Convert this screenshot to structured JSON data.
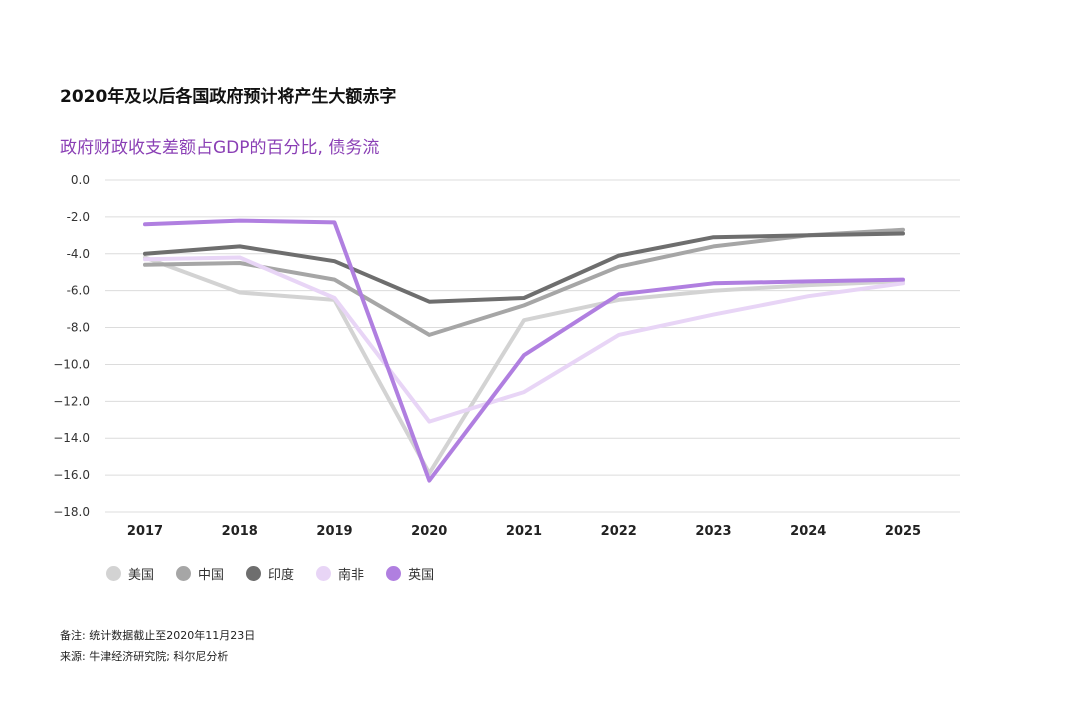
{
  "title": "2020年及以后各国政府预计将产生大额赤字",
  "subtitle": "政府财政收支差额占GDP的百分比, 债务流",
  "notes": {
    "remark": "备注: 统计数据截止至2020年11月23日",
    "source": "来源: 牛津经济研究院; 科尔尼分析"
  },
  "chart_data": {
    "type": "line",
    "title": "2020年及以后各国政府预计将产生大额赤字",
    "subtitle": "政府财政收支差额占GDP的百分比, 债务流",
    "x": [
      "2017",
      "2018",
      "2019",
      "2020",
      "2021",
      "2022",
      "2023",
      "2024",
      "2025"
    ],
    "ylim": [
      -18.0,
      0.0
    ],
    "yticks": [
      0.0,
      -2.0,
      -4.0,
      -6.0,
      -8.0,
      -10.0,
      -12.0,
      -14.0,
      -16.0,
      -18.0
    ],
    "ytick_labels": [
      "0.0",
      "-2.0",
      "-4.0",
      "-6.0",
      "-8.0",
      "−10.0",
      "−12.0",
      "−14.0",
      "−16.0",
      "−18.0"
    ],
    "grid": true,
    "legend_position": "bottom-left",
    "series": [
      {
        "name": "美国",
        "color": "#d3d3d3",
        "values": [
          -4.2,
          -6.1,
          -6.5,
          -15.9,
          -7.6,
          -6.5,
          -6.0,
          -5.7,
          -5.5
        ]
      },
      {
        "name": "中国",
        "color": "#a6a6a6",
        "values": [
          -4.6,
          -4.5,
          -5.4,
          -8.4,
          -6.8,
          -4.7,
          -3.6,
          -3.0,
          -2.7
        ]
      },
      {
        "name": "印度",
        "color": "#6e6e6e",
        "values": [
          -4.0,
          -3.6,
          -4.4,
          -6.6,
          -6.4,
          -4.1,
          -3.1,
          -3.0,
          -2.9
        ]
      },
      {
        "name": "南非",
        "color": "#e8d5f6",
        "values": [
          -4.3,
          -4.2,
          -6.4,
          -13.1,
          -11.5,
          -8.4,
          -7.3,
          -6.3,
          -5.6
        ]
      },
      {
        "name": "英国",
        "color": "#b07fe0",
        "values": [
          -2.4,
          -2.2,
          -2.3,
          -16.3,
          -9.5,
          -6.2,
          -5.6,
          -5.5,
          -5.4
        ]
      }
    ]
  }
}
